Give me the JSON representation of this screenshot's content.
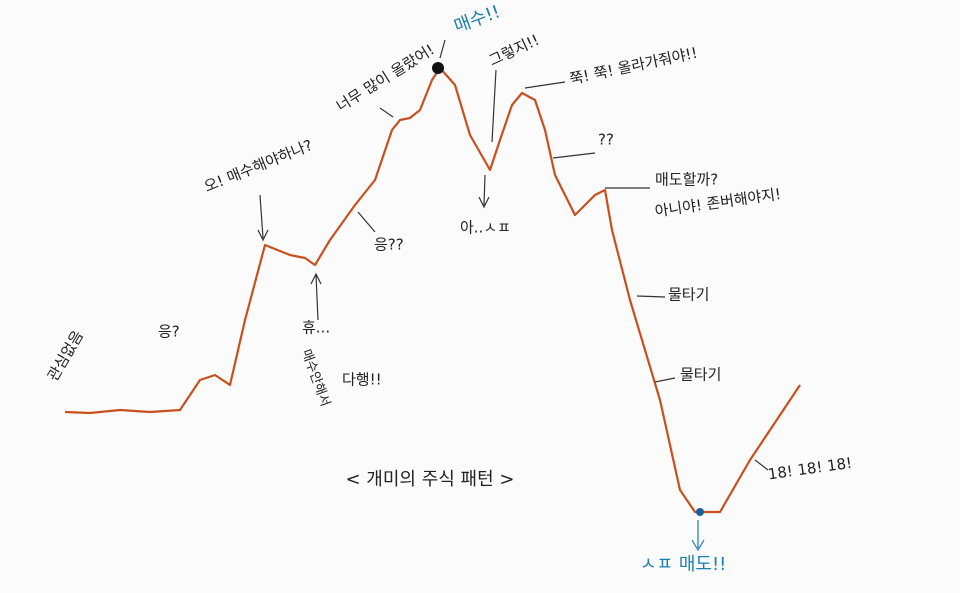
{
  "title": "< 개미의 주식 패턴 >",
  "annotations": [
    {
      "text": "관심없음"
    },
    {
      "text": "응?"
    },
    {
      "text": "오! 매수해야하나?"
    },
    {
      "text": "휴..."
    },
    {
      "text": "매수안해서"
    },
    {
      "text": "다행!!"
    },
    {
      "text": "응??"
    },
    {
      "text": "너무 많이 올랐어!"
    },
    {
      "text": "매수!!"
    },
    {
      "text": "그렇지!!"
    },
    {
      "text": "아..ㅅㅍ"
    },
    {
      "text": "쭉! 쭉! 올라가줘야!!"
    },
    {
      "text": "??"
    },
    {
      "text": "매도할까?"
    },
    {
      "text": "아니야! 존버해야지!"
    },
    {
      "text": "물타기"
    },
    {
      "text": "물타기"
    },
    {
      "text": "18! 18! 18!"
    },
    {
      "text": "ㅅㅍ 매도!!"
    }
  ]
}
